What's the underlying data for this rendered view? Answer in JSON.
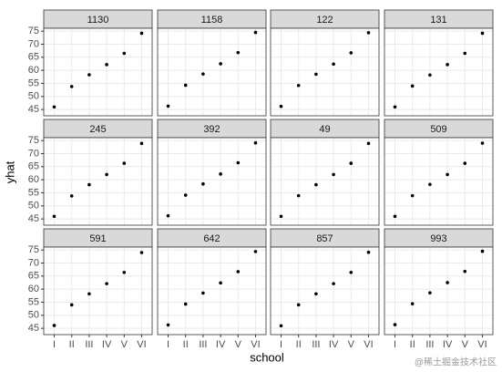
{
  "chart_data": {
    "type": "scatter",
    "xlabel": "school",
    "ylabel": "yhat",
    "categories": [
      "I",
      "II",
      "III",
      "IV",
      "V",
      "VI"
    ],
    "ylim": [
      42.6,
      76.1
    ],
    "yticks": [
      45,
      50,
      55,
      60,
      65,
      70,
      75
    ],
    "grid": true,
    "color": "#000000",
    "facets": [
      {
        "title": "1130",
        "values": [
          46,
          53.8,
          58.3,
          62.2,
          66.5,
          74.2
        ]
      },
      {
        "title": "1158",
        "values": [
          46.3,
          54.3,
          58.6,
          62.5,
          66.8,
          74.5
        ]
      },
      {
        "title": "122",
        "values": [
          46.2,
          54.2,
          58.5,
          62.4,
          66.7,
          74.4
        ]
      },
      {
        "title": "131",
        "values": [
          46,
          54,
          58.2,
          62.2,
          66.5,
          74.2
        ]
      },
      {
        "title": "245",
        "values": [
          46,
          53.8,
          58.1,
          62,
          66.3,
          73.9
        ]
      },
      {
        "title": "392",
        "values": [
          46.2,
          54.1,
          58.4,
          62.2,
          66.5,
          74.1
        ]
      },
      {
        "title": "49",
        "values": [
          46,
          53.9,
          58.1,
          62,
          66.3,
          73.9
        ]
      },
      {
        "title": "509",
        "values": [
          46,
          53.9,
          58.2,
          62,
          66.3,
          74
        ]
      },
      {
        "title": "591",
        "values": [
          46.1,
          54,
          58.2,
          62.1,
          66.4,
          74
        ]
      },
      {
        "title": "642",
        "values": [
          46.3,
          54.3,
          58.5,
          62.4,
          66.7,
          74.4
        ]
      },
      {
        "title": "857",
        "values": [
          46,
          54,
          58.2,
          62.1,
          66.4,
          74.1
        ]
      },
      {
        "title": "993",
        "values": [
          46.4,
          54.4,
          58.6,
          62.5,
          66.8,
          74.5
        ]
      }
    ],
    "watermark": "@稀土掘金技术社区"
  }
}
